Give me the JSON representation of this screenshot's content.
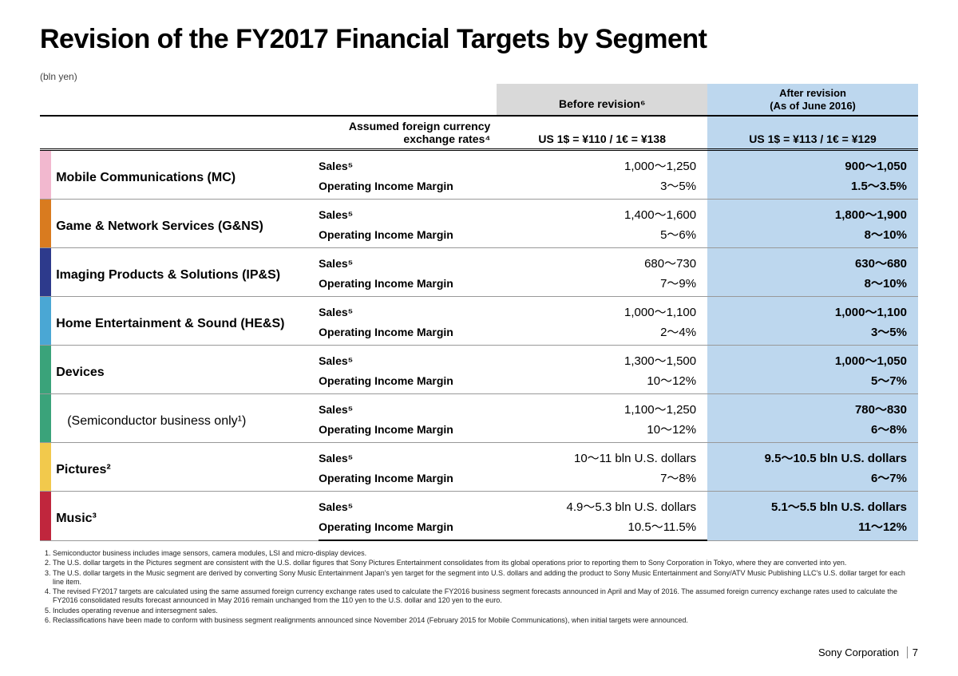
{
  "title": "Revision of the FY2017 Financial Targets by Segment",
  "unit_label": "(bln yen)",
  "header": {
    "fx_label": "Assumed foreign currency exchange rates⁴",
    "before_label": "Before revision⁶",
    "after_label_l1": "After revision",
    "after_label_l2": "(As of June 2016)",
    "fx_before": "US 1$ = ¥110 / 1€ = ¥138",
    "fx_after": "US 1$ = ¥113 / 1€ = ¥129"
  },
  "colors": {
    "before_bg": "#d9d9d9",
    "after_bg": "#bdd7ee",
    "segments": [
      "#f2b8cf",
      "#d97b1f",
      "#2d3a8c",
      "#4aa7d4",
      "#3aa37a",
      "#3aa37a",
      "#f2c94c",
      "#c0263d"
    ]
  },
  "metric_labels": {
    "sales": "Sales⁵",
    "oim": "Operating Income Margin"
  },
  "segments": [
    {
      "name": "Mobile Communications (MC)",
      "sub": false,
      "before": {
        "sales": "1,000～1,250",
        "oim": "3～5%"
      },
      "after": {
        "sales": "900～1,050",
        "oim": "1.5～3.5%"
      }
    },
    {
      "name": "Game & Network Services (G&NS)",
      "sub": false,
      "before": {
        "sales": "1,400～1,600",
        "oim": "5～6%"
      },
      "after": {
        "sales": "1,800～1,900",
        "oim": "8～10%"
      }
    },
    {
      "name": "Imaging Products & Solutions (IP&S)",
      "sub": false,
      "before": {
        "sales": "680～730",
        "oim": "7～9%"
      },
      "after": {
        "sales": "630～680",
        "oim": "8～10%"
      }
    },
    {
      "name": "Home Entertainment & Sound (HE&S)",
      "sub": false,
      "before": {
        "sales": "1,000～1,100",
        "oim": "2～4%"
      },
      "after": {
        "sales": "1,000～1,100",
        "oim": "3～5%"
      }
    },
    {
      "name": "Devices",
      "sub": false,
      "before": {
        "sales": "1,300～1,500",
        "oim": "10～12%"
      },
      "after": {
        "sales": "1,000～1,050",
        "oim": "5～7%"
      }
    },
    {
      "name": "(Semiconductor business only¹)",
      "sub": true,
      "before": {
        "sales": "1,100～1,250",
        "oim": "10～12%"
      },
      "after": {
        "sales": "780～830",
        "oim": "6～8%"
      }
    },
    {
      "name": "Pictures²",
      "sub": false,
      "before": {
        "sales": "10～11 bln U.S. dollars",
        "oim": "7～8%"
      },
      "after": {
        "sales": "9.5～10.5 bln U.S. dollars",
        "oim": "6～7%"
      }
    },
    {
      "name": "Music³",
      "sub": false,
      "before": {
        "sales": "4.9～5.3 bln U.S. dollars",
        "oim": "10.5～11.5%"
      },
      "after": {
        "sales": "5.1～5.5 bln U.S. dollars",
        "oim": "11～12%"
      }
    }
  ],
  "footnotes": [
    "Semiconductor business includes image sensors, camera modules, LSI and micro-display devices.",
    "The U.S. dollar targets in the Pictures segment are consistent with the U.S. dollar figures that Sony Pictures Entertainment consolidates from its global operations prior to reporting them to Sony Corporation in Tokyo, where they are converted into yen.",
    "The U.S. dollar targets in the Music segment are derived by converting Sony Music Entertainment Japan's yen target for the segment into U.S. dollars and adding the product to Sony Music Entertainment and Sony/ATV Music Publishing LLC's U.S. dollar target for each line item.",
    "The revised FY2017 targets are calculated using the same assumed foreign currency exchange rates used to calculate the FY2016 business segment forecasts announced in April and May of 2016. The assumed foreign currency exchange rates used to calculate the FY2016 consolidated results forecast announced in May 2016 remain unchanged from the 110 yen to the U.S. dollar and 120 yen to the euro.",
    "Includes operating revenue and intersegment sales.",
    "Reclassifications have been made to conform with business segment realignments announced since November 2014 (February 2015 for Mobile Communications), when initial targets were announced."
  ],
  "footer": {
    "company": "Sony Corporation",
    "page": "7"
  }
}
